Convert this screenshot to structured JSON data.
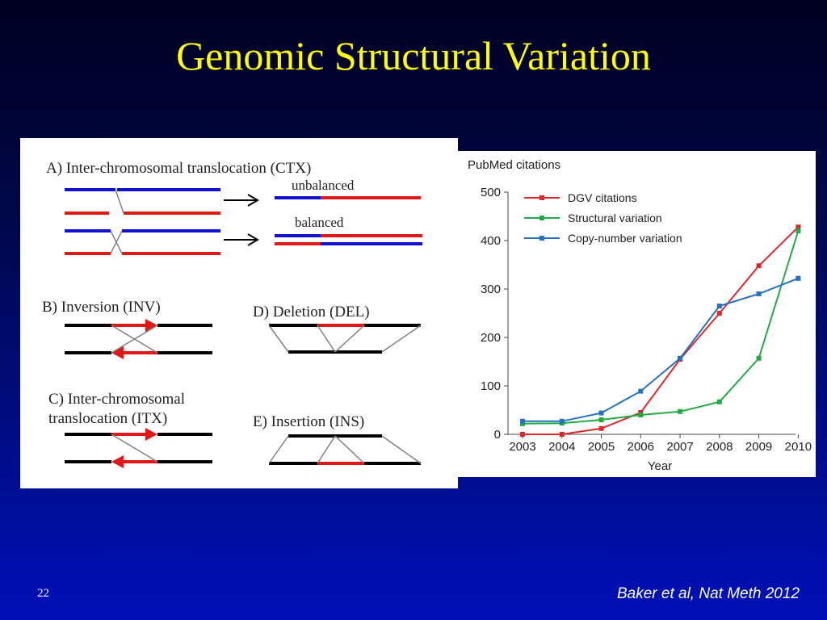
{
  "slide": {
    "title": "Genomic Structural Variation",
    "page_number": "22",
    "citation": "Baker et al, Nat Meth 2012"
  },
  "diagram": {
    "panel_a": {
      "label": "A) Inter-chromosomal translocation (CTX)",
      "unbalanced": "unbalanced",
      "balanced": "balanced"
    },
    "panel_b": {
      "label": "B) Inversion (INV)"
    },
    "panel_c": {
      "label_line1": "C) Inter-chromosomal",
      "label_line2": "translocation (ITX)"
    },
    "panel_d": {
      "label": "D) Deletion (DEL)"
    },
    "panel_e": {
      "label": "E) Insertion (INS)"
    },
    "colors": {
      "chromosome_1": "#1010d0",
      "chromosome_2": "#e01818",
      "reference": "#000000",
      "connector": "#808080"
    }
  },
  "chart_data": {
    "type": "line",
    "title": "PubMed citations",
    "xlabel": "Year",
    "ylabel": "",
    "x": [
      2003,
      2004,
      2005,
      2006,
      2007,
      2008,
      2009,
      2010
    ],
    "ylim": [
      0,
      500
    ],
    "yticks": [
      0,
      100,
      200,
      300,
      400,
      500
    ],
    "grid": false,
    "legend_position": "top-left",
    "series": [
      {
        "name": "DGV citations",
        "color": "#e0282a",
        "values": [
          0,
          0,
          12,
          45,
          155,
          250,
          348,
          428
        ]
      },
      {
        "name": "Structural variation",
        "color": "#22aa44",
        "values": [
          22,
          23,
          30,
          40,
          47,
          67,
          157,
          420
        ]
      },
      {
        "name": "Copy-number variation",
        "color": "#2472c0",
        "values": [
          27,
          27,
          44,
          89,
          157,
          265,
          290,
          322
        ]
      }
    ]
  }
}
